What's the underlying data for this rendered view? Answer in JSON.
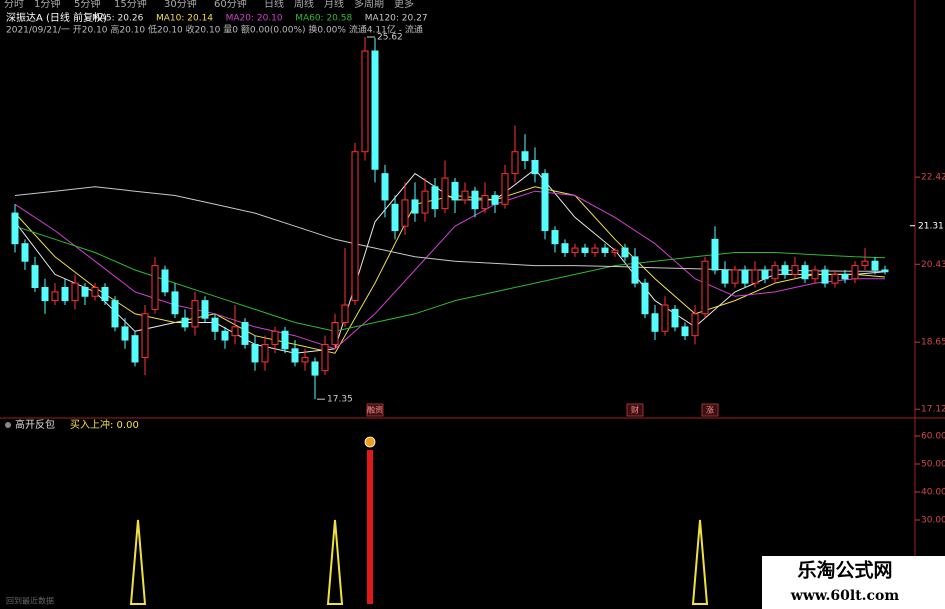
{
  "header": {
    "menu": [
      "分时",
      "1分钟",
      "5分钟",
      "15分钟",
      "30分钟",
      "60分钟",
      "日线",
      "周线",
      "月线",
      "多周期",
      "更多"
    ],
    "stock_title": "深振达A (日线 前复权)",
    "info_line": "2021/09/21/一 开20.10 高20.10 低20.10 收20.10 量0 额0.00(0.00%) 换0.00% 流通4.11亿 - 流通",
    "footer_hint": "回到最近数据",
    "watermark_title": "乐淘公式网",
    "watermark_url": "www.60lt.com"
  },
  "chart_data": [
    {
      "type": "candlestick",
      "up_color": "#ff3232",
      "down_color": "#54fcfc",
      "open": [
        21.6,
        20.9,
        20.4,
        19.9,
        19.6,
        19.9,
        19.6,
        19.9,
        19.7,
        19.9,
        19.6,
        19.0,
        18.8,
        18.3,
        19.4,
        20.3,
        19.8,
        19.2,
        19.0,
        19.6,
        19.2,
        18.9,
        18.8,
        19.1,
        18.6,
        18.2,
        18.6,
        18.9,
        18.5,
        18.2,
        18.2,
        18.0,
        18.6,
        19.1,
        19.6,
        23.0,
        25.3,
        22.5,
        21.8,
        21.3,
        21.9,
        21.6,
        22.2,
        21.7,
        22.3,
        21.9,
        22.1,
        21.7,
        22.0,
        21.8,
        22.5,
        23.0,
        22.8,
        22.5,
        21.2,
        20.9,
        20.7,
        20.8,
        20.7,
        20.8,
        20.7,
        20.8,
        20.6,
        20.0,
        19.3,
        18.9,
        19.4,
        19.0,
        18.8,
        19.3,
        21.0,
        20.3,
        20.0,
        20.3,
        20.0,
        20.3,
        20.1,
        20.4,
        20.2,
        20.4,
        20.1,
        20.3,
        20.0,
        20.2,
        20.1,
        20.4,
        20.5,
        20.3
      ],
      "close": [
        20.9,
        20.5,
        19.9,
        19.6,
        19.8,
        19.6,
        20.0,
        19.7,
        19.9,
        19.6,
        19.0,
        18.7,
        18.2,
        19.3,
        20.4,
        19.8,
        19.3,
        19.0,
        19.6,
        19.2,
        18.9,
        18.7,
        19.0,
        18.6,
        18.2,
        18.6,
        18.9,
        18.5,
        18.2,
        18.3,
        17.9,
        18.6,
        19.1,
        19.5,
        23.0,
        25.3,
        22.6,
        21.9,
        21.2,
        21.9,
        21.6,
        22.1,
        21.7,
        22.4,
        21.9,
        22.1,
        21.7,
        22.0,
        21.8,
        22.5,
        23.0,
        22.8,
        22.5,
        21.2,
        20.9,
        20.7,
        20.8,
        20.7,
        20.8,
        20.7,
        20.75,
        20.6,
        20.0,
        19.3,
        18.9,
        19.5,
        19.0,
        18.8,
        19.3,
        20.5,
        20.3,
        20.0,
        20.3,
        20.0,
        20.3,
        20.1,
        20.4,
        20.2,
        20.4,
        20.1,
        20.3,
        20.0,
        20.2,
        20.1,
        20.4,
        20.5,
        20.3,
        20.26
      ],
      "high": [
        21.8,
        21.0,
        20.6,
        20.1,
        20.0,
        20.1,
        20.2,
        20.0,
        20.0,
        20.0,
        19.7,
        19.2,
        18.9,
        19.5,
        20.6,
        20.4,
        20.0,
        19.4,
        19.8,
        19.7,
        19.3,
        19.0,
        19.5,
        19.2,
        18.8,
        18.8,
        19.0,
        19.0,
        18.7,
        18.5,
        18.3,
        18.8,
        19.3,
        20.8,
        23.2,
        25.62,
        25.6,
        22.7,
        22.0,
        22.3,
        22.3,
        22.4,
        22.4,
        22.8,
        22.4,
        22.3,
        22.2,
        22.3,
        22.1,
        22.7,
        23.6,
        23.4,
        23.1,
        22.6,
        21.3,
        21.0,
        20.9,
        20.9,
        20.9,
        20.9,
        20.8,
        20.9,
        20.8,
        20.1,
        19.5,
        19.7,
        19.5,
        19.1,
        19.5,
        20.6,
        21.3,
        20.5,
        20.4,
        20.4,
        20.5,
        20.4,
        20.5,
        20.5,
        20.6,
        20.5,
        20.4,
        20.4,
        20.3,
        20.3,
        20.5,
        20.8,
        20.6,
        20.4
      ],
      "low": [
        20.7,
        20.3,
        19.8,
        19.3,
        19.5,
        19.5,
        19.4,
        19.5,
        19.6,
        19.5,
        18.9,
        18.5,
        18.1,
        17.9,
        19.3,
        19.7,
        19.2,
        18.9,
        18.8,
        19.1,
        18.7,
        18.5,
        18.6,
        18.5,
        18.0,
        18.0,
        18.4,
        18.4,
        18.1,
        18.0,
        17.35,
        17.9,
        18.5,
        19.0,
        19.5,
        22.8,
        22.3,
        21.5,
        21.0,
        21.1,
        21.4,
        21.4,
        21.5,
        21.6,
        21.6,
        21.8,
        21.5,
        21.6,
        21.6,
        21.7,
        22.3,
        22.6,
        22.3,
        21.0,
        20.7,
        20.6,
        20.6,
        20.6,
        20.6,
        20.6,
        20.6,
        20.5,
        19.9,
        19.2,
        18.7,
        18.8,
        18.9,
        18.7,
        18.6,
        19.2,
        20.2,
        19.9,
        19.9,
        19.9,
        19.9,
        20.0,
        20.0,
        20.1,
        20.1,
        20.0,
        20.0,
        19.9,
        19.9,
        20.0,
        20.0,
        20.3,
        20.2,
        20.2
      ],
      "series": [
        {
          "name": "MA5: 20.26",
          "color": "#e8e8e8",
          "x": [
            0,
            4,
            8,
            12,
            16,
            20,
            24,
            28,
            32,
            36,
            40,
            44,
            48,
            52,
            56,
            60,
            64,
            68,
            72,
            76,
            80,
            84,
            87
          ],
          "values": [
            21.4,
            20.2,
            19.8,
            18.9,
            19.1,
            19.1,
            18.6,
            18.4,
            18.5,
            21.4,
            22.5,
            21.9,
            21.9,
            22.6,
            21.5,
            20.75,
            19.6,
            19.0,
            19.8,
            20.2,
            20.2,
            20.2,
            20.26
          ]
        },
        {
          "name": "MA10: 20.14",
          "color": "#f0e040",
          "x": [
            0,
            4,
            8,
            12,
            16,
            20,
            24,
            28,
            32,
            36,
            40,
            44,
            48,
            52,
            56,
            60,
            64,
            68,
            72,
            76,
            80,
            84,
            87
          ],
          "values": [
            21.6,
            20.6,
            19.9,
            19.3,
            19.1,
            19.3,
            18.8,
            18.6,
            18.4,
            20.0,
            21.8,
            22.0,
            21.9,
            22.2,
            22.0,
            21.0,
            20.1,
            19.3,
            19.6,
            20.0,
            20.2,
            20.2,
            20.14
          ]
        },
        {
          "name": "MA20: 20.10",
          "color": "#d040d0",
          "x": [
            0,
            4,
            8,
            12,
            16,
            20,
            24,
            28,
            32,
            36,
            40,
            44,
            48,
            52,
            56,
            60,
            64,
            68,
            72,
            76,
            80,
            84,
            87
          ],
          "values": [
            21.8,
            21.2,
            20.5,
            19.8,
            19.5,
            19.3,
            19.0,
            18.8,
            18.5,
            19.3,
            20.3,
            21.3,
            21.8,
            22.1,
            22.0,
            21.5,
            20.9,
            20.1,
            19.7,
            19.8,
            20.0,
            20.1,
            20.1
          ]
        },
        {
          "name": "MA60: 20.58",
          "color": "#2fb82f",
          "x": [
            0,
            4,
            8,
            12,
            16,
            20,
            24,
            28,
            32,
            36,
            40,
            44,
            48,
            52,
            56,
            60,
            64,
            68,
            72,
            76,
            80,
            84,
            87
          ],
          "values": [
            21.3,
            21.0,
            20.7,
            20.3,
            20.0,
            19.7,
            19.4,
            19.1,
            18.9,
            19.1,
            19.3,
            19.6,
            19.8,
            20.0,
            20.2,
            20.4,
            20.5,
            20.6,
            20.7,
            20.7,
            20.65,
            20.6,
            20.58
          ]
        },
        {
          "name": "MA120: 20.27",
          "color": "#c8c8c8",
          "x": [
            0,
            4,
            8,
            12,
            16,
            20,
            24,
            28,
            32,
            36,
            40,
            44,
            48,
            52,
            56,
            60,
            64,
            68,
            72,
            76,
            80,
            84,
            87
          ],
          "values": [
            22.0,
            22.1,
            22.2,
            22.1,
            22.0,
            21.8,
            21.6,
            21.3,
            21.0,
            20.8,
            20.6,
            20.5,
            20.45,
            20.4,
            20.4,
            20.38,
            20.35,
            20.33,
            20.3,
            20.3,
            20.28,
            20.27,
            20.27
          ]
        }
      ],
      "annotations": [
        {
          "x": 35,
          "value": 25.62,
          "label": "25.62"
        },
        {
          "x": 30,
          "value": 17.35,
          "label": "17.35"
        }
      ],
      "events": [
        {
          "x": 36,
          "label": "融资"
        },
        {
          "x": 62,
          "label": "财"
        },
        {
          "x": 69.5,
          "label": "涨"
        }
      ],
      "last_price": 21.31,
      "ylim": [
        16.92,
        25.78
      ],
      "yticks": [
        17.12,
        18.65,
        20.43,
        22.42
      ],
      "grid": false
    },
    {
      "type": "signal",
      "title": "高开反包",
      "series": [
        {
          "name": "买入上冲: 0.00",
          "color": "#f0e040",
          "x": [
            12.3,
            32,
            68.5
          ],
          "values": [
            30,
            30,
            30
          ]
        },
        {
          "color": "#e01818",
          "x": [
            35.5
          ],
          "values": [
            55
          ]
        }
      ],
      "ylim": [
        0,
        65
      ],
      "yticks": [
        {
          "value": 30,
          "label": "30.00"
        },
        {
          "value": 40,
          "label": "40.00"
        },
        {
          "value": 50,
          "label": "50.00"
        },
        {
          "value": 60,
          "label": "60.00"
        }
      ]
    }
  ]
}
